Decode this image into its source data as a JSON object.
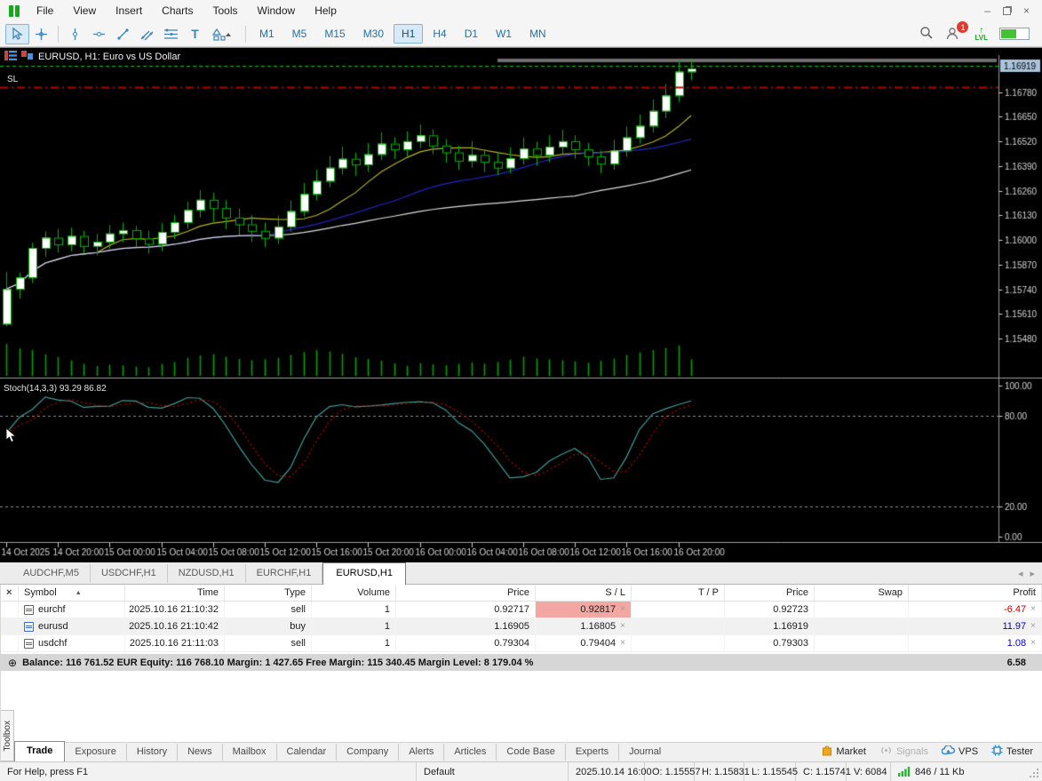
{
  "window": {
    "menu_items": [
      "File",
      "View",
      "Insert",
      "Charts",
      "Tools",
      "Window",
      "Help"
    ],
    "controls": {
      "minimize": "–",
      "close": "×"
    }
  },
  "toolbar": {
    "tools": [
      "cursor",
      "crosshair",
      "vertical-line",
      "horizontal-line",
      "trendline",
      "channel",
      "fibonacci",
      "text",
      "shapes"
    ],
    "active_tool": "cursor",
    "text_tool_glyph": "T",
    "timeframes": [
      "M1",
      "M5",
      "M15",
      "M30",
      "H1",
      "H4",
      "D1",
      "W1",
      "MN"
    ],
    "active_timeframe": "H1",
    "notification_count": "1",
    "lvl_label": "LVL",
    "lvl_arrow": "↑"
  },
  "chart": {
    "title": "EURUSD, H1:  Euro vs US Dollar",
    "sl_label": "SL",
    "indicator_label": "Stoch(14,3,3) 93.29 86.82",
    "current_price": "1.16919"
  },
  "chart_data": {
    "type": "candlestick",
    "symbol": "EURUSD",
    "timeframe": "H1",
    "start_time": "2025.10.14 16:00",
    "candles": [
      [
        1.15557,
        1.15831,
        1.15545,
        1.15741,
        6084
      ],
      [
        1.15741,
        1.15828,
        1.1569,
        1.15802,
        5210
      ],
      [
        1.15802,
        1.15985,
        1.15773,
        1.15958,
        4876
      ],
      [
        1.15958,
        1.16044,
        1.15912,
        1.16012,
        4105
      ],
      [
        1.16012,
        1.16058,
        1.15934,
        1.15976,
        3580
      ],
      [
        1.15976,
        1.16065,
        1.1594,
        1.16021,
        2950
      ],
      [
        1.16021,
        1.16048,
        1.15929,
        1.15968,
        2310
      ],
      [
        1.15968,
        1.16032,
        1.15918,
        1.15991,
        1845
      ],
      [
        1.15991,
        1.16078,
        1.15952,
        1.16034,
        2120
      ],
      [
        1.16034,
        1.16091,
        1.15987,
        1.16052,
        1980
      ],
      [
        1.16052,
        1.16074,
        1.15961,
        1.16008,
        1760
      ],
      [
        1.16008,
        1.16049,
        1.15928,
        1.15979,
        1630
      ],
      [
        1.15979,
        1.16088,
        1.15941,
        1.16042,
        2240
      ],
      [
        1.16042,
        1.16132,
        1.16005,
        1.16094,
        2610
      ],
      [
        1.16094,
        1.16201,
        1.16061,
        1.16158,
        3390
      ],
      [
        1.16158,
        1.16262,
        1.16118,
        1.16212,
        3870
      ],
      [
        1.16212,
        1.16249,
        1.16095,
        1.16168,
        4120
      ],
      [
        1.16168,
        1.16211,
        1.16058,
        1.16118,
        3640
      ],
      [
        1.16118,
        1.16164,
        1.16024,
        1.16082,
        3210
      ],
      [
        1.16082,
        1.16131,
        1.15989,
        1.16048,
        2980
      ],
      [
        1.16048,
        1.16092,
        1.15962,
        1.16011,
        3150
      ],
      [
        1.16011,
        1.16128,
        1.15978,
        1.16071,
        3420
      ],
      [
        1.16071,
        1.16208,
        1.16042,
        1.16152,
        3980
      ],
      [
        1.16152,
        1.16301,
        1.16124,
        1.16242,
        4510
      ],
      [
        1.16242,
        1.16372,
        1.16208,
        1.16311,
        4890
      ],
      [
        1.16311,
        1.16442,
        1.16278,
        1.16381,
        4620
      ],
      [
        1.16381,
        1.16492,
        1.16344,
        1.16428,
        4180
      ],
      [
        1.16428,
        1.16461,
        1.16338,
        1.16398,
        3560
      ],
      [
        1.16398,
        1.16512,
        1.16361,
        1.16452,
        3240
      ],
      [
        1.16452,
        1.16568,
        1.16421,
        1.16508,
        2890
      ],
      [
        1.16508,
        1.16541,
        1.16428,
        1.16478,
        2340
      ],
      [
        1.16478,
        1.16572,
        1.16441,
        1.16521,
        1920
      ],
      [
        1.16521,
        1.16608,
        1.16484,
        1.16552,
        2410
      ],
      [
        1.16552,
        1.16584,
        1.16451,
        1.16498,
        2180
      ],
      [
        1.16498,
        1.16531,
        1.16408,
        1.16462,
        1980
      ],
      [
        1.16462,
        1.16498,
        1.16371,
        1.16418,
        2260
      ],
      [
        1.16418,
        1.16521,
        1.16382,
        1.16448,
        2540
      ],
      [
        1.16448,
        1.16478,
        1.16358,
        1.16412,
        2310
      ],
      [
        1.16412,
        1.16462,
        1.16341,
        1.16381,
        2620
      ],
      [
        1.16381,
        1.16488,
        1.16352,
        1.16431,
        3080
      ],
      [
        1.16431,
        1.16541,
        1.16398,
        1.16482,
        3640
      ],
      [
        1.16482,
        1.16518,
        1.16392,
        1.16448,
        3310
      ],
      [
        1.16448,
        1.16552,
        1.16411,
        1.16492,
        3150
      ],
      [
        1.16492,
        1.16582,
        1.16452,
        1.16521,
        2980
      ],
      [
        1.16521,
        1.16552,
        1.16428,
        1.16478,
        2760
      ],
      [
        1.16478,
        1.16512,
        1.16391,
        1.16441,
        2480
      ],
      [
        1.16441,
        1.16471,
        1.16352,
        1.16402,
        2840
      ],
      [
        1.16402,
        1.16528,
        1.16371,
        1.16472,
        3290
      ],
      [
        1.16472,
        1.16598,
        1.16438,
        1.16541,
        3980
      ],
      [
        1.16541,
        1.16662,
        1.16508,
        1.16602,
        4450
      ],
      [
        1.16602,
        1.16741,
        1.16568,
        1.16681,
        4890
      ],
      [
        1.16681,
        1.16822,
        1.16642,
        1.16762,
        5320
      ],
      [
        1.16762,
        1.16948,
        1.16728,
        1.16888,
        5780
      ],
      [
        1.16888,
        1.16952,
        1.16842,
        1.16905,
        3150
      ]
    ],
    "price_axis": {
      "ticks": [
        "1.16780",
        "1.16650",
        "1.16520",
        "1.16390",
        "1.16260",
        "1.16130",
        "1.16000",
        "1.15870",
        "1.15740",
        "1.15610",
        "1.15480"
      ],
      "current": "1.16919"
    },
    "time_axis": [
      [
        0,
        "14 Oct 2025"
      ],
      [
        4,
        "14 Oct 20:00"
      ],
      [
        8,
        "15 Oct 00:00"
      ],
      [
        12,
        "15 Oct 04:00"
      ],
      [
        16,
        "15 Oct 08:00"
      ],
      [
        20,
        "15 Oct 12:00"
      ],
      [
        24,
        "15 Oct 16:00"
      ],
      [
        28,
        "15 Oct 20:00"
      ],
      [
        32,
        "16 Oct 00:00"
      ],
      [
        36,
        "16 Oct 04:00"
      ],
      [
        40,
        "16 Oct 08:00"
      ],
      [
        44,
        "16 Oct 12:00"
      ],
      [
        48,
        "16 Oct 16:00"
      ],
      [
        52,
        "16 Oct 20:00"
      ]
    ],
    "overlays": {
      "bid_line": 1.16919,
      "sl_line": 1.16805,
      "moving_averages": [
        {
          "name": "fast",
          "period": 8,
          "color": "#b5b520"
        },
        {
          "name": "medium",
          "period": 21,
          "color": "#2424cc"
        },
        {
          "name": "slow",
          "period": 45,
          "color": "#dedede"
        }
      ]
    },
    "stochastic": {
      "label": "Stoch(14,3,3) 93.29 86.82",
      "k_period": 14,
      "d_period": 3,
      "slowing": 3,
      "current_k": 93.29,
      "current_d": 86.82,
      "levels": [
        80,
        20
      ],
      "ticks": [
        [
          "100.00",
          100
        ],
        [
          "80.00",
          80
        ],
        [
          "20.00",
          20
        ],
        [
          "0.00",
          0
        ]
      ]
    },
    "colors": {
      "background": "#000000",
      "candle_border": "#00b400",
      "candle_up_fill": "#ffffff",
      "candle_down_fill": "#000000",
      "volume": "#00a000",
      "bid_line": "#00c400",
      "sl_line": "#b40000",
      "stoch_k": "#3f9e97",
      "stoch_d": "#c00000",
      "level_line": "#8e8e8e",
      "axis_text": "#d4d4d4",
      "price_tag_bg": "#a9c3da"
    }
  },
  "chart_tabs": {
    "tabs": [
      "AUDCHF,M5",
      "USDCHF,H1",
      "NZDUSD,H1",
      "EURCHF,H1",
      "EURUSD,H1"
    ],
    "active": "EURUSD,H1",
    "nav_left": "◂",
    "nav_right": "▸"
  },
  "trade_panel": {
    "close_glyph": "×",
    "sort_icon": "▲",
    "columns": [
      "Symbol",
      "Time",
      "Type",
      "Volume",
      "Price",
      "S / L",
      "T / P",
      "Price",
      "Swap",
      "Profit"
    ],
    "rows": [
      {
        "symbol": "eurchf",
        "side": "sell",
        "time": "2025.10.16 21:10:32",
        "type": "sell",
        "volume": "1",
        "price": "0.92717",
        "sl": "0.92817",
        "sl_highlight": true,
        "tp": "",
        "cprice": "0.92723",
        "swap": "",
        "profit": "-6.47",
        "profit_negative": true
      },
      {
        "symbol": "eurusd",
        "side": "buy",
        "time": "2025.10.16 21:10:42",
        "type": "buy",
        "volume": "1",
        "price": "1.16905",
        "sl": "1.16805",
        "sl_highlight": false,
        "tp": "",
        "cprice": "1.16919",
        "swap": "",
        "profit": "11.97",
        "profit_negative": false
      },
      {
        "symbol": "usdchf",
        "side": "sell",
        "time": "2025.10.16 21:11:03",
        "type": "sell",
        "volume": "1",
        "price": "0.79304",
        "sl": "0.79404",
        "sl_highlight": false,
        "tp": "",
        "cprice": "0.79303",
        "swap": "",
        "profit": "1.08",
        "profit_negative": false
      }
    ],
    "balance_icon": "⊕",
    "balance_line": "Balance: 116 761.52 EUR  Equity: 116 768.10  Margin: 1 427.65  Free Margin: 115 340.45  Margin Level: 8 179.04 %",
    "balance_total": "6.58",
    "toolbox_label": "Toolbox",
    "dock_tabs": [
      "Trade",
      "Exposure",
      "History",
      "News",
      "Mailbox",
      "Calendar",
      "Company",
      "Alerts",
      "Articles",
      "Code Base",
      "Experts",
      "Journal"
    ],
    "active_dock_tab": "Trade",
    "dock_buttons": [
      {
        "name": "market",
        "label": "Market",
        "disabled": false
      },
      {
        "name": "signals",
        "label": "Signals",
        "disabled": true
      },
      {
        "name": "vps",
        "label": "VPS",
        "disabled": false
      },
      {
        "name": "tester",
        "label": "Tester",
        "disabled": false
      }
    ]
  },
  "status_bar": {
    "help_text": "For Help, press F1",
    "profile": "Default",
    "segments": [
      "2025.10.14 16:00",
      "O: 1.15557",
      "H: 1.15831",
      "L: 1.15545",
      "C: 1.15741",
      "V: 6084"
    ],
    "traffic": "846 / 11 Kb"
  }
}
